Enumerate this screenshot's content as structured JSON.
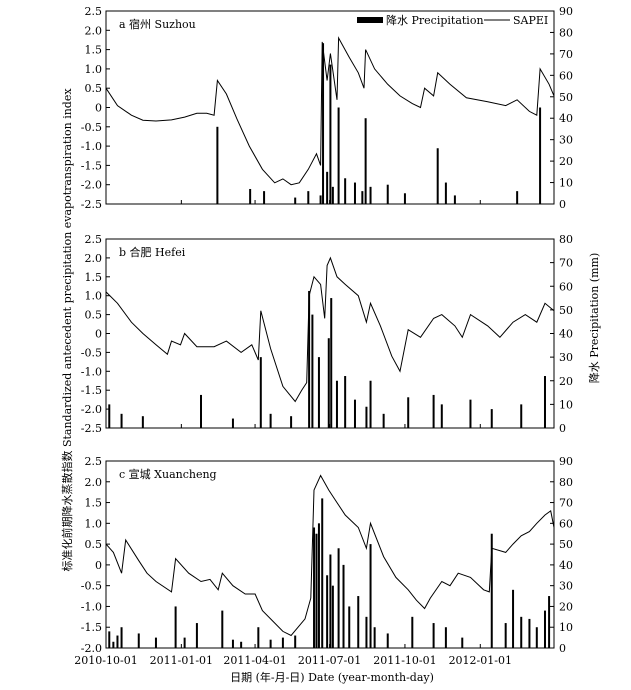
{
  "chart_data": {
    "type": "line",
    "legend": {
      "precipitation": "降水 Precipitation",
      "sapei": "SAPEI",
      "placement": "top-right"
    },
    "y_left_label": "标准化前期降水蒸散指数 Standardized antecedent precipitation evapotranspiration index",
    "y_right_label": "降水 Precipitation (mm)",
    "x_label": "日期 (年-月-日) Date (year-month-day)",
    "x_range": [
      "2010-10-01",
      "2012-03-31"
    ],
    "x_ticks": [
      "2010-10-01",
      "2011-01-01",
      "2011-04-01",
      "2011-07-01",
      "2011-10-01",
      "2012-01-01"
    ],
    "panels": [
      {
        "title": "a 宿州 Suzhou",
        "left_ylim": [
          -2.5,
          2.5
        ],
        "left_ticks": [
          "2.5",
          "2.0",
          "1.5",
          "1.0",
          "0.5",
          "0",
          "-0.5",
          "-1.0",
          "-1.5",
          "-2.0",
          "-2.5"
        ],
        "right_ylim": [
          0,
          90
        ],
        "right_ticks": [
          "90",
          "80",
          "70",
          "60",
          "50",
          "40",
          "30",
          "20",
          "10",
          "0"
        ],
        "sapei": [
          [
            "2010-10-01",
            0.5
          ],
          [
            "2010-10-15",
            0.05
          ],
          [
            "2010-11-01",
            -0.2
          ],
          [
            "2010-11-15",
            -0.33
          ],
          [
            "2010-12-01",
            -0.35
          ],
          [
            "2010-12-20",
            -0.32
          ],
          [
            "2011-01-05",
            -0.25
          ],
          [
            "2011-01-20",
            -0.15
          ],
          [
            "2011-02-01",
            -0.15
          ],
          [
            "2011-02-10",
            -0.2
          ],
          [
            "2011-02-14",
            0.7
          ],
          [
            "2011-02-25",
            0.35
          ],
          [
            "2011-03-10",
            -0.3
          ],
          [
            "2011-03-25",
            -1.0
          ],
          [
            "2011-04-10",
            -1.6
          ],
          [
            "2011-04-25",
            -1.95
          ],
          [
            "2011-05-05",
            -1.85
          ],
          [
            "2011-05-15",
            -2.0
          ],
          [
            "2011-05-25",
            -1.95
          ],
          [
            "2011-06-05",
            -1.6
          ],
          [
            "2011-06-15",
            -1.2
          ],
          [
            "2011-06-20",
            -1.5
          ],
          [
            "2011-06-22",
            1.7
          ],
          [
            "2011-06-28",
            0.7
          ],
          [
            "2011-07-02",
            1.4
          ],
          [
            "2011-07-10",
            0.2
          ],
          [
            "2011-07-12",
            1.8
          ],
          [
            "2011-07-25",
            1.3
          ],
          [
            "2011-08-05",
            0.9
          ],
          [
            "2011-08-12",
            0.5
          ],
          [
            "2011-08-14",
            1.5
          ],
          [
            "2011-08-25",
            1.0
          ],
          [
            "2011-09-10",
            0.6
          ],
          [
            "2011-09-25",
            0.3
          ],
          [
            "2011-10-10",
            0.1
          ],
          [
            "2011-10-20",
            0.0
          ],
          [
            "2011-10-25",
            0.5
          ],
          [
            "2011-11-05",
            0.3
          ],
          [
            "2011-11-10",
            0.9
          ],
          [
            "2011-11-25",
            0.6
          ],
          [
            "2011-12-15",
            0.25
          ],
          [
            "2012-01-10",
            0.15
          ],
          [
            "2012-02-01",
            0.05
          ],
          [
            "2012-02-15",
            0.2
          ],
          [
            "2012-03-01",
            -0.1
          ],
          [
            "2012-03-10",
            -0.2
          ],
          [
            "2012-03-14",
            1.0
          ],
          [
            "2012-03-25",
            0.6
          ],
          [
            "2012-03-31",
            0.3
          ]
        ],
        "precip": [
          [
            "2011-02-14",
            36
          ],
          [
            "2011-03-26",
            7
          ],
          [
            "2011-04-12",
            6
          ],
          [
            "2011-05-20",
            3
          ],
          [
            "2011-06-05",
            6
          ],
          [
            "2011-06-20",
            4
          ],
          [
            "2011-06-23",
            75
          ],
          [
            "2011-06-28",
            15
          ],
          [
            "2011-07-02",
            65
          ],
          [
            "2011-07-05",
            8
          ],
          [
            "2011-07-12",
            45
          ],
          [
            "2011-07-20",
            12
          ],
          [
            "2011-08-01",
            10
          ],
          [
            "2011-08-10",
            6
          ],
          [
            "2011-08-14",
            40
          ],
          [
            "2011-08-20",
            8
          ],
          [
            "2011-09-10",
            9
          ],
          [
            "2011-10-01",
            5
          ],
          [
            "2011-11-10",
            26
          ],
          [
            "2011-11-20",
            10
          ],
          [
            "2011-12-01",
            4
          ],
          [
            "2012-02-15",
            6
          ],
          [
            "2012-03-14",
            45
          ]
        ]
      },
      {
        "title": "b 合肥 Hefei",
        "left_ylim": [
          -2.5,
          2.5
        ],
        "left_ticks": [
          "2.5",
          "2.0",
          "1.5",
          "1.0",
          "0.5",
          "0",
          "-0.5",
          "-1.0",
          "-1.5",
          "-2.0",
          "-2.5"
        ],
        "right_ylim": [
          0,
          80
        ],
        "right_ticks": [
          "80",
          "70",
          "60",
          "50",
          "40",
          "30",
          "20",
          "10",
          "0"
        ],
        "sapei": [
          [
            "2010-10-01",
            1.1
          ],
          [
            "2010-10-15",
            0.8
          ],
          [
            "2010-11-01",
            0.3
          ],
          [
            "2010-11-15",
            0.0
          ],
          [
            "2010-12-01",
            -0.3
          ],
          [
            "2010-12-15",
            -0.55
          ],
          [
            "2010-12-20",
            -0.2
          ],
          [
            "2010-12-31",
            -0.3
          ],
          [
            "2011-01-05",
            0.0
          ],
          [
            "2011-01-20",
            -0.35
          ],
          [
            "2011-02-10",
            -0.35
          ],
          [
            "2011-02-25",
            -0.2
          ],
          [
            "2011-03-15",
            -0.5
          ],
          [
            "2011-03-28",
            -0.3
          ],
          [
            "2011-04-05",
            -0.7
          ],
          [
            "2011-04-08",
            0.6
          ],
          [
            "2011-04-20",
            -0.4
          ],
          [
            "2011-05-05",
            -1.4
          ],
          [
            "2011-05-20",
            -1.8
          ],
          [
            "2011-05-28",
            -1.5
          ],
          [
            "2011-06-03",
            -1.3
          ],
          [
            "2011-06-06",
            1.0
          ],
          [
            "2011-06-12",
            1.5
          ],
          [
            "2011-06-20",
            1.3
          ],
          [
            "2011-06-25",
            0.4
          ],
          [
            "2011-06-28",
            1.8
          ],
          [
            "2011-07-02",
            2.0
          ],
          [
            "2011-07-10",
            1.5
          ],
          [
            "2011-07-20",
            1.3
          ],
          [
            "2011-08-05",
            1.0
          ],
          [
            "2011-08-15",
            0.3
          ],
          [
            "2011-08-20",
            0.8
          ],
          [
            "2011-09-01",
            0.2
          ],
          [
            "2011-09-15",
            -0.6
          ],
          [
            "2011-09-25",
            -1.0
          ],
          [
            "2011-10-05",
            0.1
          ],
          [
            "2011-10-20",
            -0.1
          ],
          [
            "2011-11-05",
            0.4
          ],
          [
            "2011-11-15",
            0.5
          ],
          [
            "2011-12-01",
            0.2
          ],
          [
            "2011-12-10",
            -0.1
          ],
          [
            "2011-12-20",
            0.5
          ],
          [
            "2012-01-10",
            0.2
          ],
          [
            "2012-01-25",
            -0.1
          ],
          [
            "2012-02-10",
            0.3
          ],
          [
            "2012-02-25",
            0.5
          ],
          [
            "2012-03-10",
            0.3
          ],
          [
            "2012-03-20",
            0.8
          ],
          [
            "2012-03-31",
            0.6
          ]
        ],
        "precip": [
          [
            "2010-10-05",
            10
          ],
          [
            "2010-10-20",
            6
          ],
          [
            "2010-11-15",
            5
          ],
          [
            "2011-01-25",
            14
          ],
          [
            "2011-03-05",
            4
          ],
          [
            "2011-04-08",
            30
          ],
          [
            "2011-04-20",
            6
          ],
          [
            "2011-05-15",
            5
          ],
          [
            "2011-06-06",
            58
          ],
          [
            "2011-06-10",
            48
          ],
          [
            "2011-06-18",
            30
          ],
          [
            "2011-06-30",
            38
          ],
          [
            "2011-07-03",
            55
          ],
          [
            "2011-07-10",
            20
          ],
          [
            "2011-07-20",
            22
          ],
          [
            "2011-08-01",
            12
          ],
          [
            "2011-08-15",
            9
          ],
          [
            "2011-08-20",
            20
          ],
          [
            "2011-09-05",
            6
          ],
          [
            "2011-10-05",
            13
          ],
          [
            "2011-11-05",
            14
          ],
          [
            "2011-11-15",
            10
          ],
          [
            "2011-12-20",
            12
          ],
          [
            "2012-01-15",
            8
          ],
          [
            "2012-02-20",
            10
          ],
          [
            "2012-03-20",
            22
          ]
        ]
      },
      {
        "title": "c 宣城 Xuancheng",
        "left_ylim": [
          -2.0,
          2.5
        ],
        "left_ticks": [
          "2.5",
          "2.0",
          "1.5",
          "1.0",
          "0.5",
          "0",
          "-0.5",
          "-1.0",
          "-1.5",
          "-2.0"
        ],
        "right_ylim": [
          0,
          90
        ],
        "right_ticks": [
          "90",
          "80",
          "70",
          "60",
          "50",
          "40",
          "30",
          "20",
          "10",
          "0"
        ],
        "sapei": [
          [
            "2010-10-01",
            0.5
          ],
          [
            "2010-10-10",
            0.3
          ],
          [
            "2010-10-20",
            -0.2
          ],
          [
            "2010-10-25",
            0.6
          ],
          [
            "2010-11-10",
            0.1
          ],
          [
            "2010-11-20",
            -0.2
          ],
          [
            "2010-12-01",
            -0.4
          ],
          [
            "2010-12-20",
            -0.65
          ],
          [
            "2010-12-25",
            0.15
          ],
          [
            "2011-01-10",
            -0.2
          ],
          [
            "2011-01-25",
            -0.4
          ],
          [
            "2011-02-05",
            -0.35
          ],
          [
            "2011-02-15",
            -0.6
          ],
          [
            "2011-02-20",
            -0.2
          ],
          [
            "2011-03-05",
            -0.5
          ],
          [
            "2011-03-20",
            -0.7
          ],
          [
            "2011-04-01",
            -0.7
          ],
          [
            "2011-04-10",
            -1.1
          ],
          [
            "2011-04-20",
            -1.3
          ],
          [
            "2011-05-05",
            -1.6
          ],
          [
            "2011-05-15",
            -1.7
          ],
          [
            "2011-06-01",
            -1.3
          ],
          [
            "2011-06-08",
            -0.8
          ],
          [
            "2011-06-12",
            1.8
          ],
          [
            "2011-06-20",
            2.15
          ],
          [
            "2011-06-30",
            1.8
          ],
          [
            "2011-07-10",
            1.5
          ],
          [
            "2011-07-20",
            1.2
          ],
          [
            "2011-08-05",
            0.9
          ],
          [
            "2011-08-15",
            0.4
          ],
          [
            "2011-08-20",
            1.0
          ],
          [
            "2011-09-05",
            0.2
          ],
          [
            "2011-09-20",
            -0.3
          ],
          [
            "2011-10-05",
            -0.6
          ],
          [
            "2011-10-15",
            -0.85
          ],
          [
            "2011-10-25",
            -1.05
          ],
          [
            "2011-11-01",
            -0.8
          ],
          [
            "2011-11-15",
            -0.4
          ],
          [
            "2011-11-25",
            -0.5
          ],
          [
            "2011-12-05",
            -0.2
          ],
          [
            "2011-12-20",
            -0.3
          ],
          [
            "2012-01-05",
            -0.6
          ],
          [
            "2012-01-12",
            -0.65
          ],
          [
            "2012-01-15",
            0.4
          ],
          [
            "2012-02-01",
            0.3
          ],
          [
            "2012-02-10",
            0.5
          ],
          [
            "2012-02-20",
            0.7
          ],
          [
            "2012-03-01",
            0.8
          ],
          [
            "2012-03-10",
            1.0
          ],
          [
            "2012-03-20",
            1.2
          ],
          [
            "2012-03-27",
            1.3
          ],
          [
            "2012-03-31",
            0.9
          ]
        ],
        "precip": [
          [
            "2010-10-05",
            8
          ],
          [
            "2010-10-10",
            3
          ],
          [
            "2010-10-15",
            6
          ],
          [
            "2010-10-20",
            10
          ],
          [
            "2010-11-10",
            7
          ],
          [
            "2010-12-01",
            5
          ],
          [
            "2010-12-25",
            20
          ],
          [
            "2011-01-05",
            5
          ],
          [
            "2011-01-20",
            12
          ],
          [
            "2011-02-20",
            18
          ],
          [
            "2011-03-05",
            4
          ],
          [
            "2011-03-15",
            3
          ],
          [
            "2011-04-05",
            10
          ],
          [
            "2011-04-20",
            4
          ],
          [
            "2011-05-05",
            5
          ],
          [
            "2011-05-20",
            6
          ],
          [
            "2011-06-12",
            58
          ],
          [
            "2011-06-15",
            55
          ],
          [
            "2011-06-18",
            60
          ],
          [
            "2011-06-22",
            72
          ],
          [
            "2011-06-28",
            35
          ],
          [
            "2011-07-02",
            45
          ],
          [
            "2011-07-05",
            30
          ],
          [
            "2011-07-12",
            48
          ],
          [
            "2011-07-18",
            40
          ],
          [
            "2011-07-25",
            20
          ],
          [
            "2011-08-05",
            25
          ],
          [
            "2011-08-15",
            15
          ],
          [
            "2011-08-20",
            50
          ],
          [
            "2011-08-25",
            10
          ],
          [
            "2011-09-10",
            7
          ],
          [
            "2011-10-10",
            15
          ],
          [
            "2011-11-05",
            12
          ],
          [
            "2011-11-20",
            10
          ],
          [
            "2011-12-10",
            5
          ],
          [
            "2012-01-15",
            55
          ],
          [
            "2012-02-01",
            12
          ],
          [
            "2012-02-10",
            28
          ],
          [
            "2012-02-20",
            15
          ],
          [
            "2012-03-01",
            14
          ],
          [
            "2012-03-10",
            10
          ],
          [
            "2012-03-20",
            18
          ],
          [
            "2012-03-25",
            25
          ]
        ]
      }
    ]
  }
}
